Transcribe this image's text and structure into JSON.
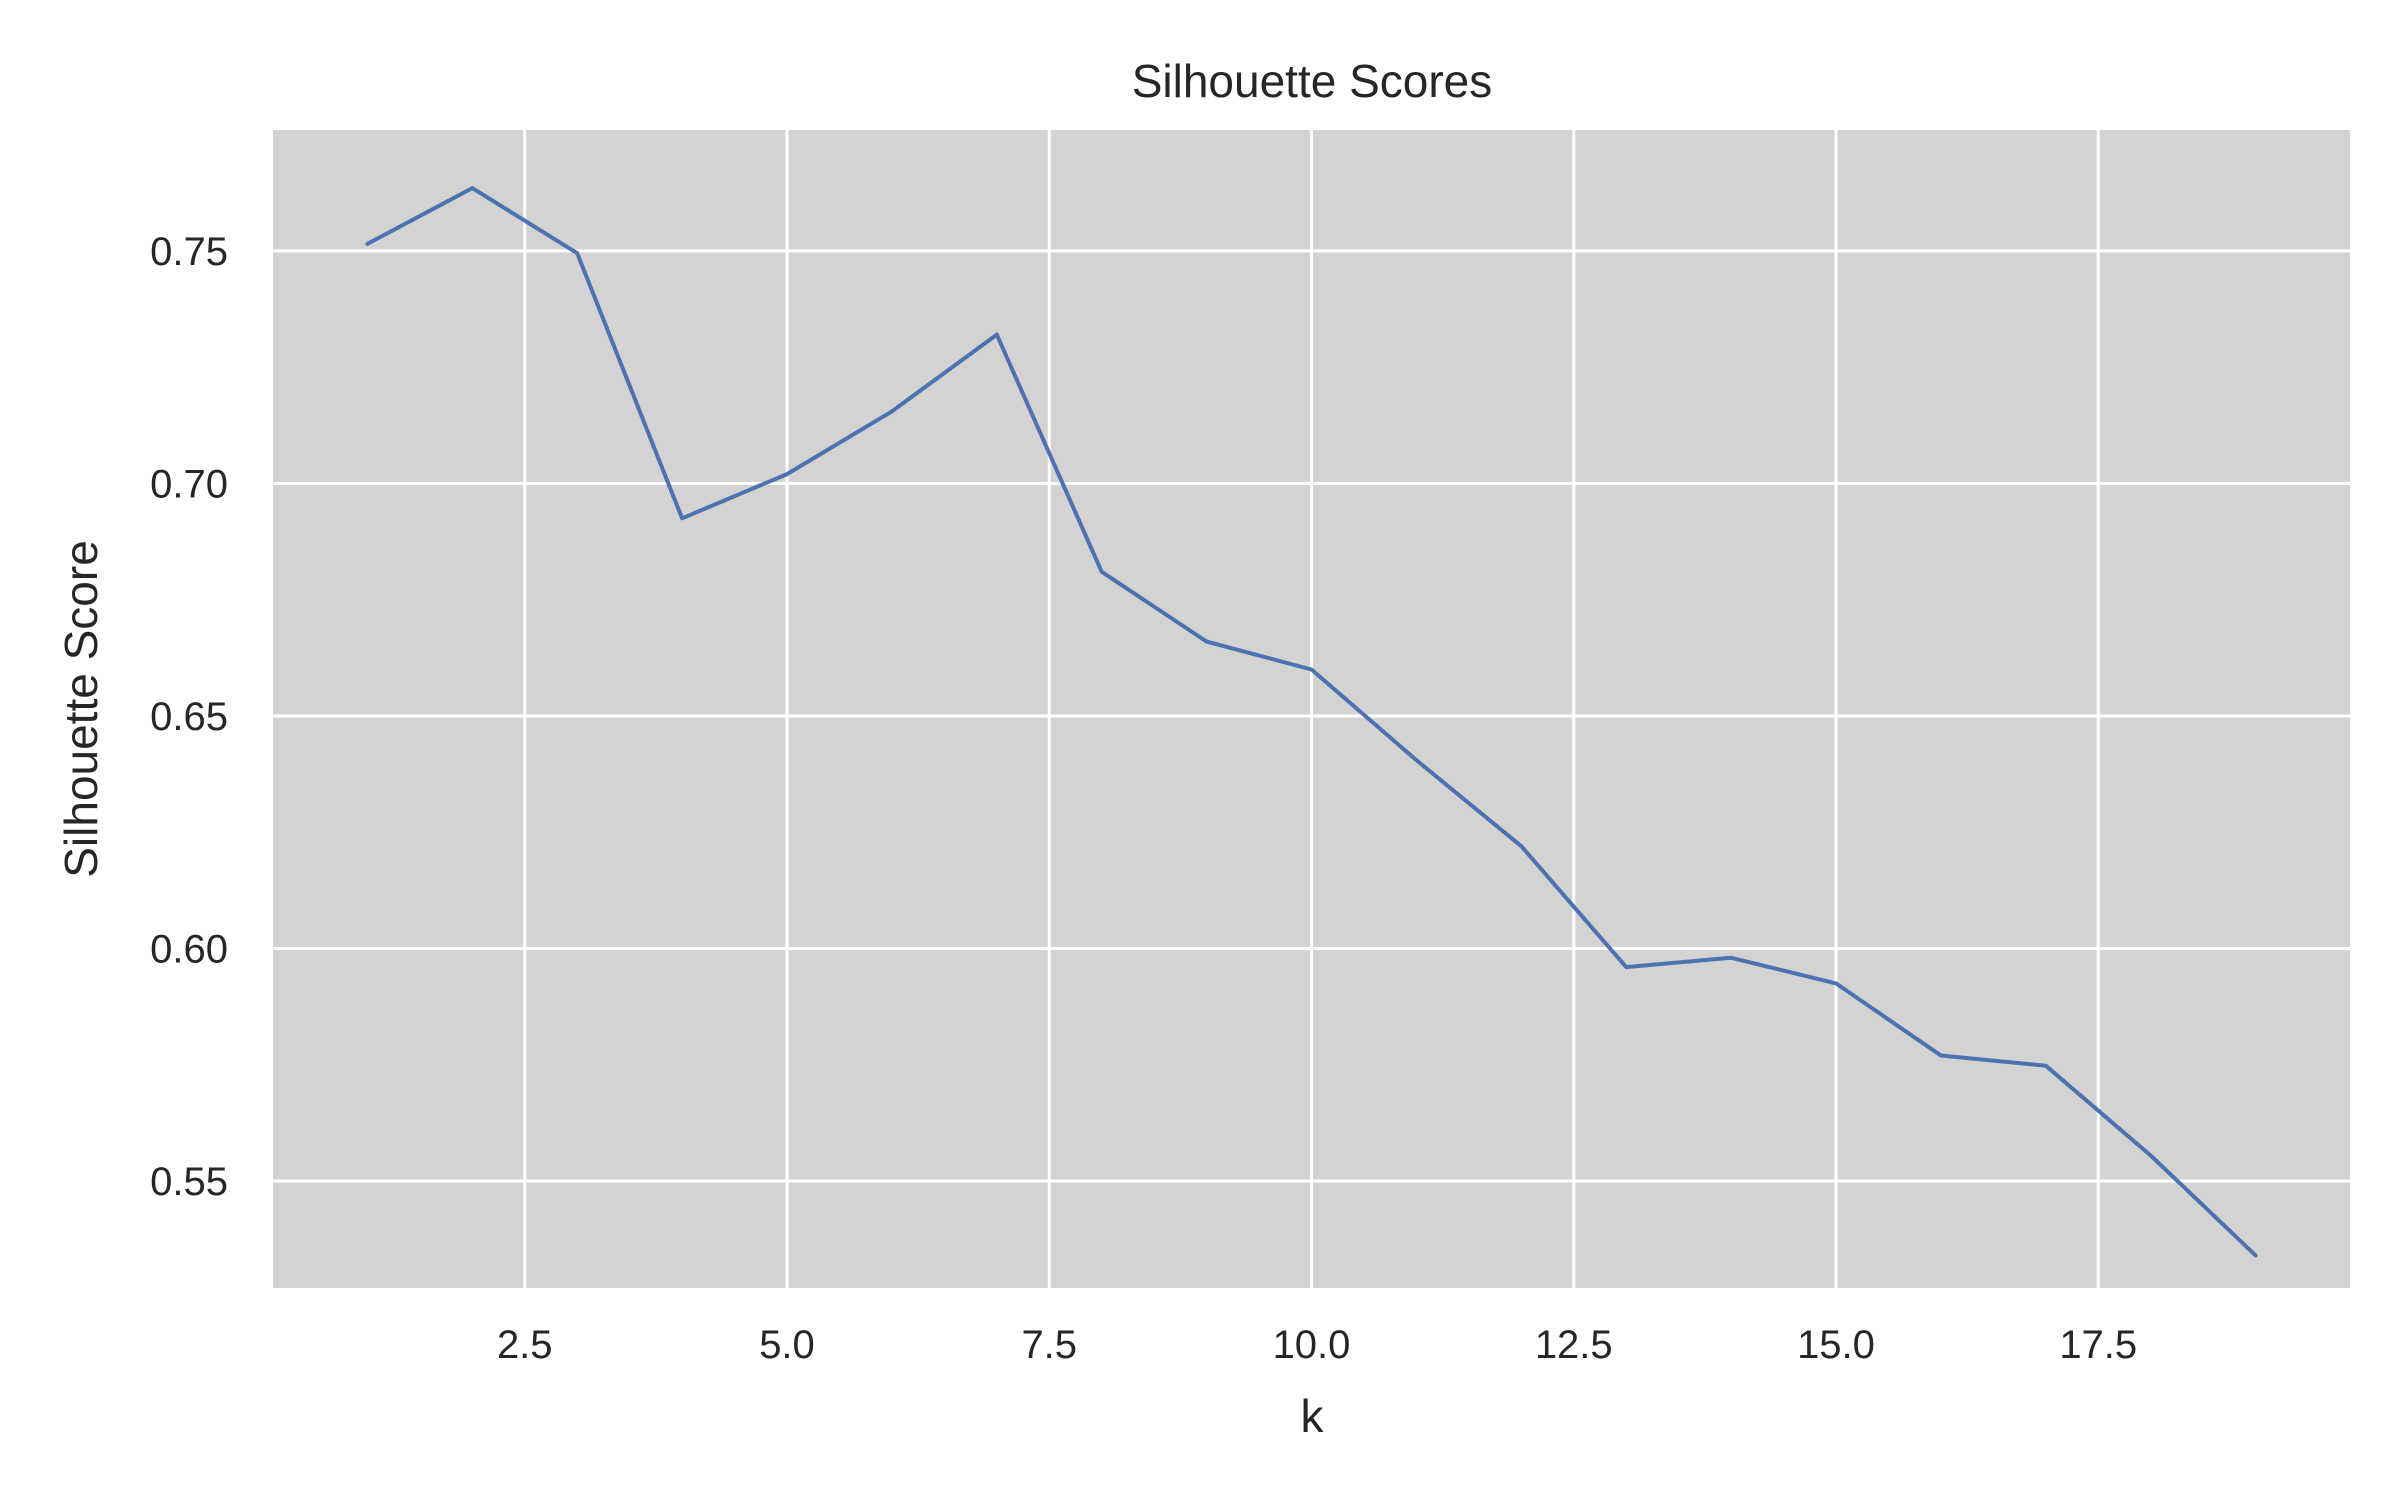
{
  "chart_data": {
    "type": "line",
    "title": "Silhouette Scores",
    "xlabel": "k",
    "ylabel": "Silhouette Score",
    "xlim": [
      0.1,
      19.9
    ],
    "ylim": [
      0.527,
      0.776
    ],
    "xticks": [
      2.5,
      5.0,
      7.5,
      10.0,
      12.5,
      15.0,
      17.5
    ],
    "xtick_labels": [
      "2.5",
      "5.0",
      "7.5",
      "10.0",
      "12.5",
      "15.0",
      "17.5"
    ],
    "yticks": [
      0.55,
      0.6,
      0.65,
      0.7,
      0.75
    ],
    "ytick_labels": [
      "0.55",
      "0.60",
      "0.65",
      "0.70",
      "0.75"
    ],
    "grid": true,
    "series": [
      {
        "x": [
          1,
          2,
          3,
          4,
          5,
          6,
          7,
          8,
          9,
          10,
          11,
          12,
          13,
          14,
          15,
          16,
          17,
          18,
          19
        ],
        "values": [
          0.7515,
          0.7635,
          0.7495,
          0.6925,
          0.702,
          0.7155,
          0.732,
          0.681,
          0.666,
          0.66,
          0.6405,
          0.622,
          0.596,
          0.598,
          0.5925,
          0.577,
          0.5748,
          0.5555,
          0.534
        ]
      }
    ]
  },
  "colors": {
    "plot_background": "#d3d3d3",
    "grid": "#ffffff",
    "line": "#4c72b0",
    "text": "#262626"
  }
}
